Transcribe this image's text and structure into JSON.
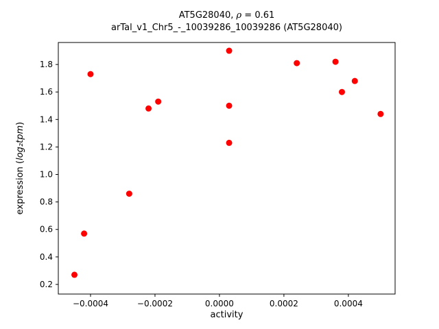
{
  "figure": {
    "background": "#ffffff",
    "title": {
      "part1": "AT5G28040, ",
      "rho": "ρ",
      "part2": " = 0.61",
      "line2": "arTal_v1_Chr5_-_10039286_10039286 (AT5G28040)"
    }
  },
  "chart_data": {
    "type": "scatter",
    "title": "AT5G28040, ρ = 0.61\narTal_v1_Chr5_-_10039286_10039286 (AT5G28040)",
    "xlabel": "activity",
    "ylabel_prefix": "expression (",
    "ylabel_math": "log₂tpm",
    "ylabel_suffix": ")",
    "marker_color": "#ff0000",
    "axis_color": "#000000",
    "grid": false,
    "legend": false,
    "xlim": [
      -0.0005,
      0.000545
    ],
    "ylim": [
      0.13,
      1.96
    ],
    "xticks": [
      {
        "v": -0.0004,
        "label": "−0.0004"
      },
      {
        "v": -0.0002,
        "label": "−0.0002"
      },
      {
        "v": 0.0,
        "label": "0.0000"
      },
      {
        "v": 0.0002,
        "label": "0.0002"
      },
      {
        "v": 0.0004,
        "label": "0.0004"
      }
    ],
    "yticks": [
      {
        "v": 0.2,
        "label": "0.2"
      },
      {
        "v": 0.4,
        "label": "0.4"
      },
      {
        "v": 0.6,
        "label": "0.6"
      },
      {
        "v": 0.8,
        "label": "0.8"
      },
      {
        "v": 1.0,
        "label": "1.0"
      },
      {
        "v": 1.2,
        "label": "1.2"
      },
      {
        "v": 1.4,
        "label": "1.4"
      },
      {
        "v": 1.6,
        "label": "1.6"
      },
      {
        "v": 1.8,
        "label": "1.8"
      }
    ],
    "points": [
      [
        -0.00045,
        0.27
      ],
      [
        -0.00042,
        0.57
      ],
      [
        -0.0004,
        1.73
      ],
      [
        -0.00028,
        0.86
      ],
      [
        -0.00022,
        1.48
      ],
      [
        -0.00019,
        1.53
      ],
      [
        3e-05,
        1.9
      ],
      [
        3e-05,
        1.5
      ],
      [
        3e-05,
        1.23
      ],
      [
        0.00024,
        1.81
      ],
      [
        0.00036,
        1.82
      ],
      [
        0.00038,
        1.6
      ],
      [
        0.00042,
        1.68
      ],
      [
        0.0005,
        1.44
      ]
    ]
  }
}
